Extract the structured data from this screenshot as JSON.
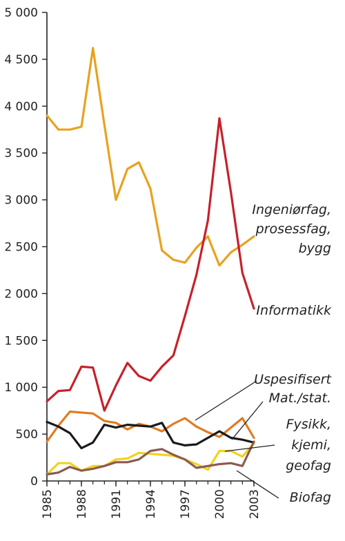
{
  "chart_data": {
    "type": "line",
    "title": "",
    "xlabel": "",
    "ylabel": "",
    "ylim": [
      0,
      5000
    ],
    "xlim": [
      1985,
      2003
    ],
    "grid": false,
    "legend": "direct labels on right",
    "y_ticks": [
      {
        "value": 0,
        "label": "0"
      },
      {
        "value": 500,
        "label": "500"
      },
      {
        "value": 1000,
        "label": "1 000"
      },
      {
        "value": 1500,
        "label": "1 500"
      },
      {
        "value": 2000,
        "label": "2 000"
      },
      {
        "value": 2500,
        "label": "2 500"
      },
      {
        "value": 3000,
        "label": "3 000"
      },
      {
        "value": 3500,
        "label": "3 500"
      },
      {
        "value": 4000,
        "label": "4 000"
      },
      {
        "value": 4500,
        "label": "4 500"
      },
      {
        "value": 5000,
        "label": "5 000"
      }
    ],
    "x_ticks": [
      {
        "value": 1985,
        "label": "1985"
      },
      {
        "value": 1988,
        "label": "1988"
      },
      {
        "value": 1991,
        "label": "1991"
      },
      {
        "value": 1994,
        "label": "1994"
      },
      {
        "value": 1997,
        "label": "1997"
      },
      {
        "value": 2000,
        "label": "2000"
      },
      {
        "value": 2003,
        "label": "2003"
      }
    ],
    "x": [
      1985,
      1986,
      1987,
      1988,
      1989,
      1990,
      1991,
      1992,
      1993,
      1994,
      1995,
      1996,
      1997,
      1998,
      1999,
      2000,
      2001,
      2002,
      2003
    ],
    "series": [
      {
        "name": "Ingeniørfag, prosessfag, bygg",
        "label_lines": [
          "Ingeniørfag,",
          "prosessfag,",
          "bygg"
        ],
        "color": "#e8a21d",
        "values": [
          3900,
          3750,
          3750,
          3780,
          4620,
          3800,
          3000,
          3330,
          3400,
          3120,
          2460,
          2360,
          2330,
          2490,
          2610,
          2300,
          2440,
          2520,
          2610
        ]
      },
      {
        "name": "Informatikk",
        "label_lines": [
          "Informatikk"
        ],
        "color": "#c8202a",
        "values": [
          850,
          960,
          970,
          1220,
          1210,
          750,
          1020,
          1260,
          1120,
          1070,
          1220,
          1340,
          1760,
          2200,
          2780,
          3870,
          3080,
          2220,
          1840
        ]
      },
      {
        "name": "Uspesifisert",
        "label_lines": [
          "Uspesifisert"
        ],
        "color": "#e07b23",
        "values": [
          420,
          590,
          740,
          730,
          720,
          640,
          620,
          550,
          610,
          580,
          530,
          610,
          670,
          580,
          520,
          470,
          570,
          670,
          460
        ]
      },
      {
        "name": "Mat./stat.",
        "label_lines": [
          "Mat./stat."
        ],
        "color": "#1a1a1a",
        "values": [
          630,
          580,
          510,
          350,
          410,
          600,
          570,
          600,
          590,
          580,
          620,
          410,
          380,
          390,
          460,
          530,
          460,
          440,
          410
        ]
      },
      {
        "name": "Fysikk, kjemi, geofag",
        "label_lines": [
          "Fysikk,",
          "kjemi,",
          "geofag"
        ],
        "color": "#f2d21c",
        "values": [
          70,
          190,
          190,
          110,
          160,
          160,
          230,
          240,
          300,
          290,
          280,
          270,
          230,
          180,
          120,
          320,
          320,
          260,
          400
        ]
      },
      {
        "name": "Biofag",
        "label_lines": [
          "Biofag"
        ],
        "color": "#8c5a4f",
        "values": [
          70,
          90,
          150,
          110,
          130,
          160,
          200,
          200,
          230,
          320,
          340,
          280,
          230,
          140,
          160,
          180,
          190,
          160,
          420
        ]
      }
    ]
  }
}
